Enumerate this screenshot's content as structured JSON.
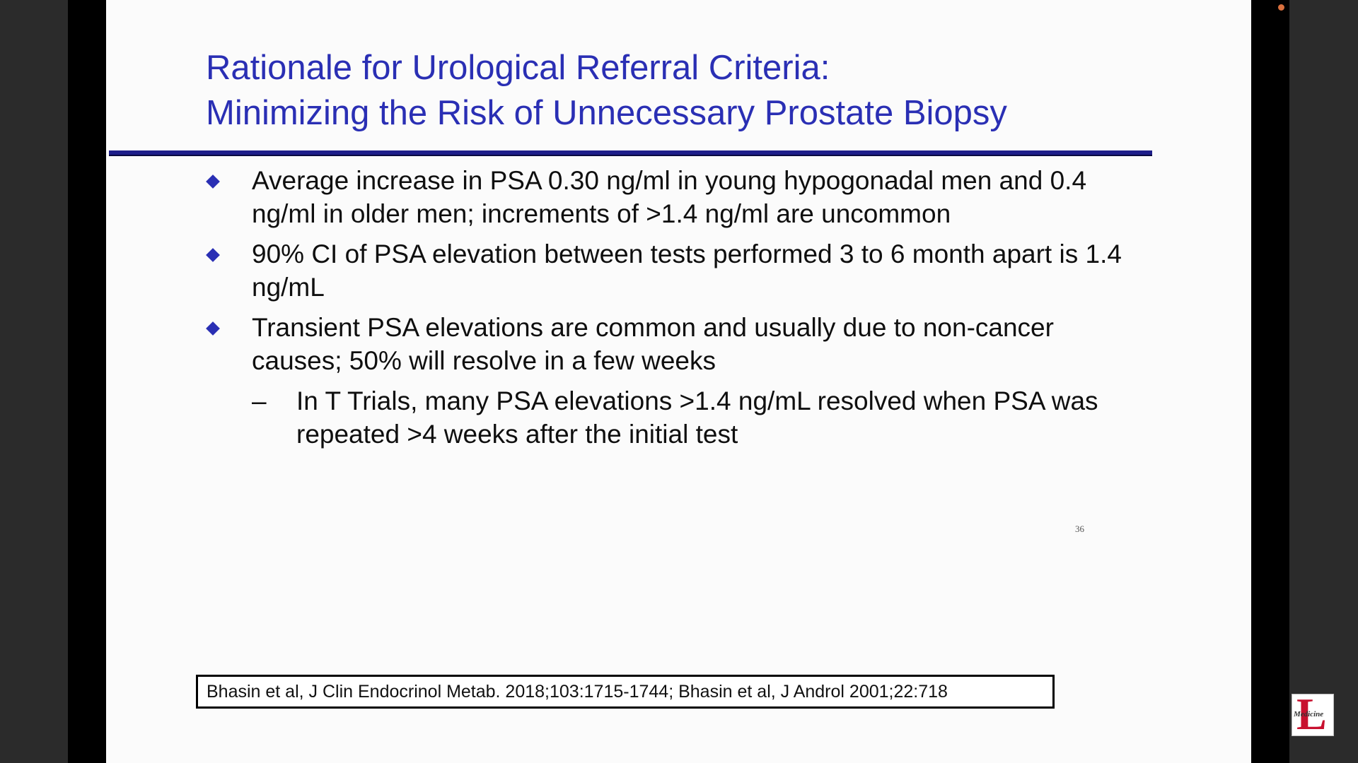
{
  "slide": {
    "title_line1": "Rationale for Urological Referral Criteria:",
    "title_line2": "Minimizing the Risk of Unnecessary Prostate Biopsy",
    "bullets": [
      {
        "text": "Average increase in PSA 0.30 ng/ml in young hypogonadal men and 0.4 ng/ml in older men; increments of >1.4 ng/ml are uncommon"
      },
      {
        "text": "90% CI of PSA elevation between tests performed 3 to 6 month apart is 1.4 ng/mL"
      },
      {
        "text": "Transient PSA elevations are common and usually due to non-cancer causes; 50% will resolve in a few weeks"
      }
    ],
    "sub_bullet": {
      "dash": "–",
      "text": "In T Trials, many PSA elevations >1.4 ng/mL resolved when PSA was repeated >4 weeks after the initial test"
    },
    "page_number": "36",
    "citation": "Bhasin et al, J Clin Endocrinol Metab. 2018;103:1715-1744; Bhasin et al, J Androl 2001;22:718"
  },
  "logo": {
    "letter": "L",
    "text": "Medicine"
  },
  "colors": {
    "title": "#2a2fb4",
    "rule": "#1e1e8a",
    "bullet_marker": "#2a2fb4",
    "logo_red": "#c8102e",
    "record_dot": "#d9703e"
  },
  "icons": {
    "bullet_marker": "diamond-icon",
    "recording_indicator": "record-dot-icon",
    "logo": "university-logo-icon"
  }
}
